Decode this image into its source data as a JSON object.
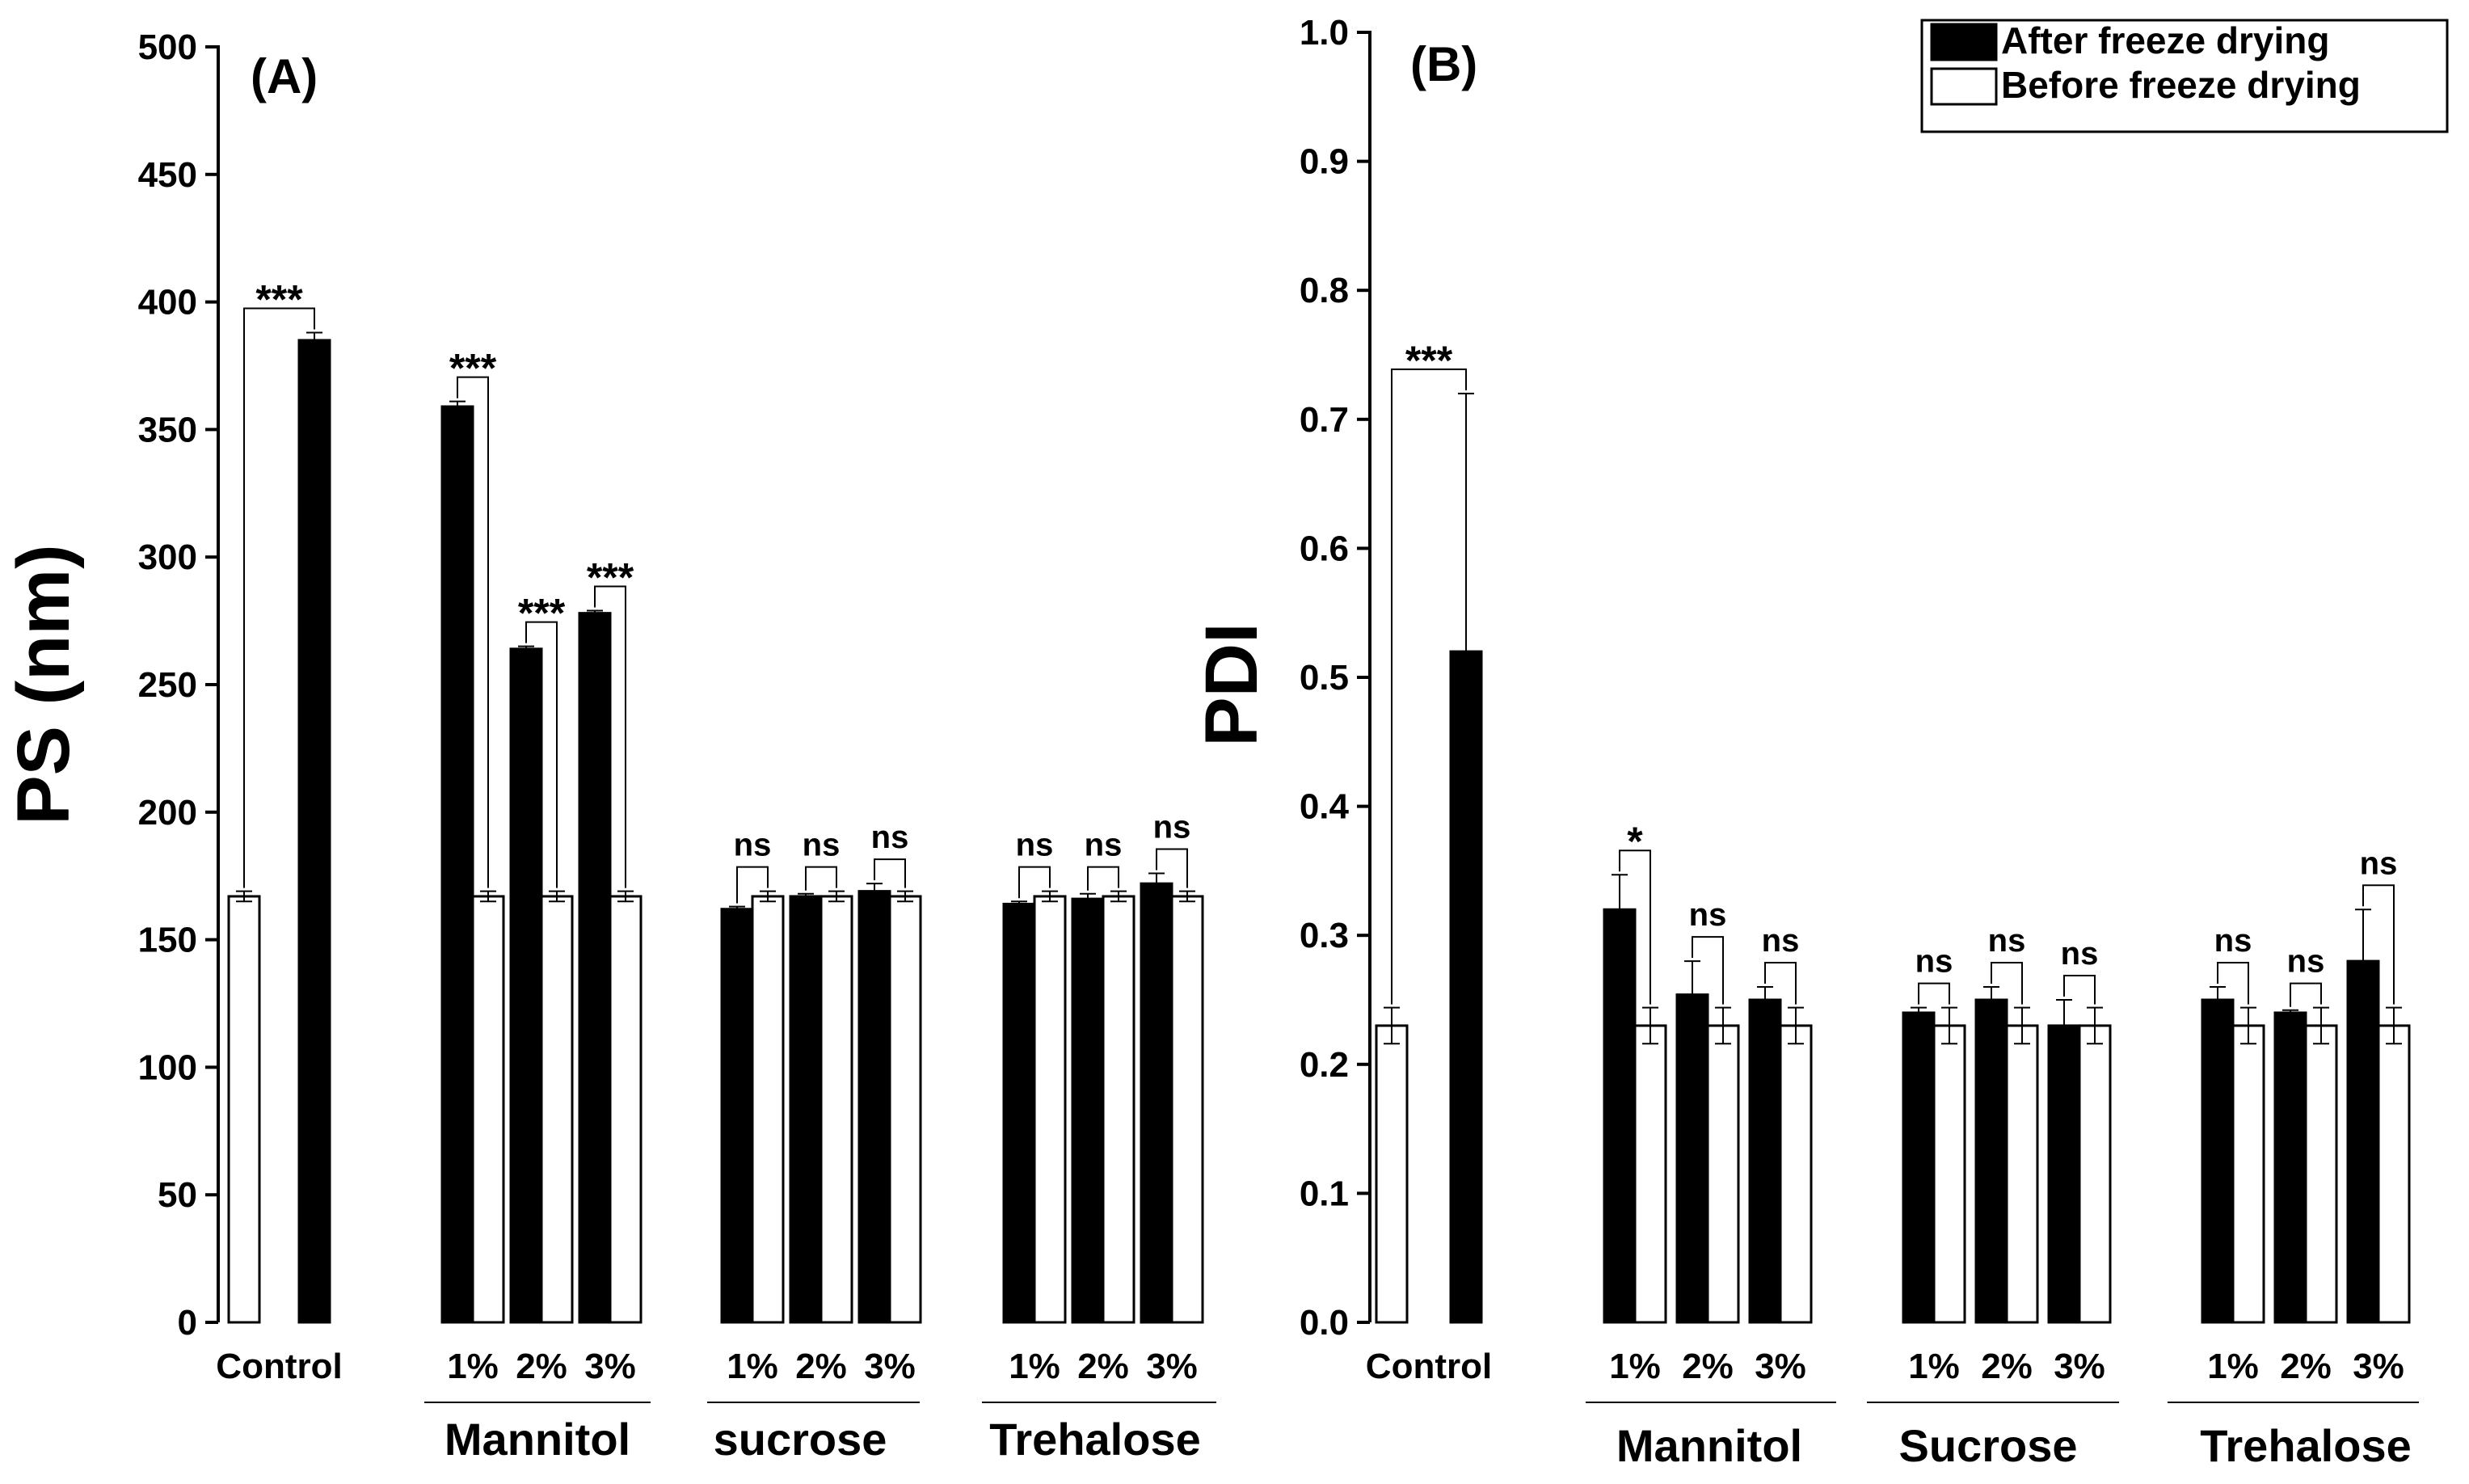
{
  "chart_data": [
    {
      "type": "bar",
      "panel_label": "(A)",
      "ylabel": "PS (nm)",
      "ylim": [
        0,
        500
      ],
      "yticks": [
        "0",
        "50",
        "100",
        "150",
        "200",
        "250",
        "300",
        "350",
        "400",
        "450",
        "500"
      ],
      "legend": null,
      "groups": [
        {
          "name": "",
          "categories": [
            {
              "label": "Control",
              "after": 385,
              "after_err": 3,
              "before": 167,
              "before_err": 2,
              "sig": "***",
              "order": "before-after"
            }
          ]
        },
        {
          "name": "Mannitol",
          "categories": [
            {
              "label": "1%",
              "after": 359,
              "after_err": 2,
              "before": 167,
              "before_err": 2,
              "sig": "***",
              "order": "after-before"
            },
            {
              "label": "2%",
              "after": 264,
              "after_err": 1,
              "before": 167,
              "before_err": 2,
              "sig": "***",
              "order": "after-before"
            },
            {
              "label": "3%",
              "after": 278,
              "after_err": 1,
              "before": 167,
              "before_err": 2,
              "sig": "***",
              "order": "after-before"
            }
          ]
        },
        {
          "name": "sucrose",
          "categories": [
            {
              "label": "1%",
              "after": 162,
              "after_err": 1,
              "before": 167,
              "before_err": 2,
              "sig": "ns",
              "order": "after-before"
            },
            {
              "label": "2%",
              "after": 167,
              "after_err": 1,
              "before": 167,
              "before_err": 2,
              "sig": "ns",
              "order": "after-before"
            },
            {
              "label": "3%",
              "after": 169,
              "after_err": 3,
              "before": 167,
              "before_err": 2,
              "sig": "ns",
              "order": "after-before"
            }
          ]
        },
        {
          "name": "Trehalose",
          "categories": [
            {
              "label": "1%",
              "after": 164,
              "after_err": 1,
              "before": 167,
              "before_err": 2,
              "sig": "ns",
              "order": "after-before"
            },
            {
              "label": "2%",
              "after": 166,
              "after_err": 2,
              "before": 167,
              "before_err": 2,
              "sig": "ns",
              "order": "after-before"
            },
            {
              "label": "3%",
              "after": 172,
              "after_err": 4,
              "before": 167,
              "before_err": 2,
              "sig": "ns",
              "order": "after-before"
            }
          ]
        }
      ]
    },
    {
      "type": "bar",
      "panel_label": "(B)",
      "ylabel": "PDI",
      "ylim": [
        0,
        1.0
      ],
      "yticks": [
        "0.0",
        "0.1",
        "0.2",
        "0.3",
        "0.4",
        "0.5",
        "0.6",
        "0.7",
        "0.8",
        "0.9",
        "1.0"
      ],
      "legend": {
        "position": "top-right",
        "entries": [
          "After freeze drying",
          "Before freeze drying"
        ],
        "colors": [
          "#000000",
          "#ffffff"
        ]
      },
      "groups": [
        {
          "name": "",
          "categories": [
            {
              "label": "Control",
              "after": 0.52,
              "after_err": 0.2,
              "before": 0.23,
              "before_err": 0.014,
              "sig": "***",
              "order": "before-after"
            }
          ]
        },
        {
          "name": "Mannitol",
          "categories": [
            {
              "label": "1%",
              "after": 0.32,
              "after_err": 0.027,
              "before": 0.23,
              "before_err": 0.014,
              "sig": "*",
              "order": "after-before"
            },
            {
              "label": "2%",
              "after": 0.254,
              "after_err": 0.026,
              "before": 0.23,
              "before_err": 0.014,
              "sig": "ns",
              "order": "after-before"
            },
            {
              "label": "3%",
              "after": 0.25,
              "after_err": 0.01,
              "before": 0.23,
              "before_err": 0.014,
              "sig": "ns",
              "order": "after-before"
            }
          ]
        },
        {
          "name": "Sucrose",
          "categories": [
            {
              "label": "1%",
              "after": 0.24,
              "after_err": 0.004,
              "before": 0.23,
              "before_err": 0.014,
              "sig": "ns",
              "order": "after-before"
            },
            {
              "label": "2%",
              "after": 0.25,
              "after_err": 0.01,
              "before": 0.23,
              "before_err": 0.014,
              "sig": "ns",
              "order": "after-before"
            },
            {
              "label": "3%",
              "after": 0.23,
              "after_err": 0.02,
              "before": 0.23,
              "before_err": 0.014,
              "sig": "ns",
              "order": "after-before"
            }
          ]
        },
        {
          "name": "Trehalose",
          "categories": [
            {
              "label": "1%",
              "after": 0.25,
              "after_err": 0.01,
              "before": 0.23,
              "before_err": 0.014,
              "sig": "ns",
              "order": "after-before"
            },
            {
              "label": "2%",
              "after": 0.24,
              "after_err": 0.002,
              "before": 0.23,
              "before_err": 0.014,
              "sig": "ns",
              "order": "after-before"
            },
            {
              "label": "3%",
              "after": 0.28,
              "after_err": 0.04,
              "before": 0.23,
              "before_err": 0.014,
              "sig": "ns",
              "order": "after-before"
            }
          ]
        }
      ]
    }
  ]
}
